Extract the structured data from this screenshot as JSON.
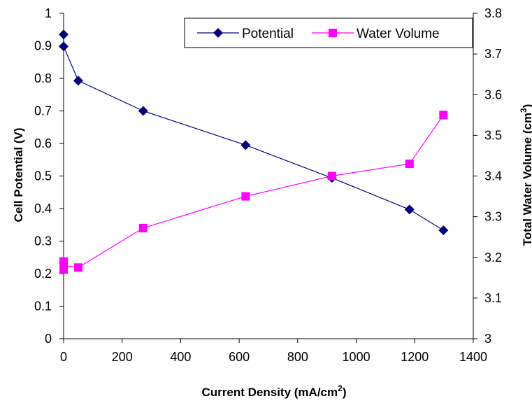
{
  "chart_data": {
    "type": "line",
    "xlabel": "Current Density (mA/cm",
    "xlabel_sup": "2",
    "xlabel_end": ")",
    "ylabel": "Cell Potential (V)",
    "y2label": "Total Water Volume (cm",
    "y2label_sup": "3",
    "y2label_end": ")",
    "xlim": [
      0,
      1400
    ],
    "ylim": [
      0,
      1
    ],
    "y2lim": [
      3,
      3.8
    ],
    "x_ticks": [
      "0",
      "200",
      "400",
      "600",
      "800",
      "1000",
      "1200",
      "1400"
    ],
    "y_ticks": [
      "0",
      "0.1",
      "0.2",
      "0.3",
      "0.4",
      "0.5",
      "0.6",
      "0.7",
      "0.8",
      "0.9",
      "1"
    ],
    "y2_ticks": [
      "3",
      "3.1",
      "3.2",
      "3.3",
      "3.4",
      "3.5",
      "3.6",
      "3.7",
      "3.8"
    ],
    "legend_position": "top-right",
    "grid": false,
    "series": [
      {
        "name": "Potential",
        "axis": "left",
        "marker": "diamond",
        "color": "#000080",
        "x": [
          0,
          0,
          50,
          272,
          622,
          917,
          1182,
          1298
        ],
        "y": [
          0.935,
          0.898,
          0.793,
          0.7,
          0.595,
          0.494,
          0.397,
          0.333
        ]
      },
      {
        "name": "Water Volume",
        "axis": "right",
        "marker": "square",
        "color": "#ff00ff",
        "x": [
          0,
          0,
          0,
          50,
          272,
          622,
          917,
          1182,
          1298
        ],
        "y": [
          3.19,
          3.17,
          3.18,
          3.175,
          3.272,
          3.35,
          3.4,
          3.43,
          3.55
        ]
      }
    ]
  }
}
